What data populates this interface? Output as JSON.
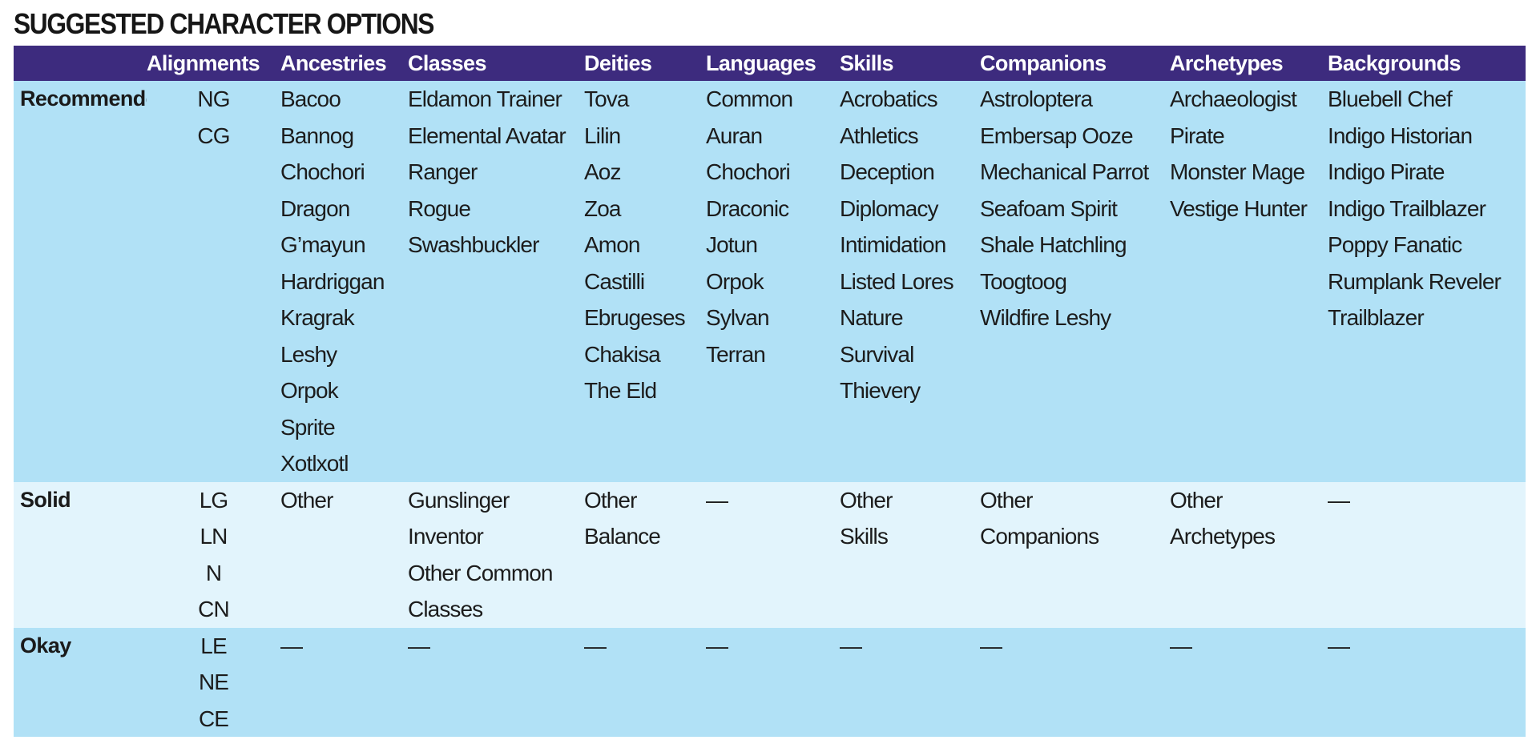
{
  "title": "SUGGESTED CHARACTER OPTIONS",
  "columns": [
    {
      "key": "rowlabel",
      "label": ""
    },
    {
      "key": "alignments",
      "label": "Alignments"
    },
    {
      "key": "ancestries",
      "label": "Ancestries"
    },
    {
      "key": "classes",
      "label": "Classes"
    },
    {
      "key": "deities",
      "label": "Deities"
    },
    {
      "key": "languages",
      "label": "Languages"
    },
    {
      "key": "skills",
      "label": "Skills"
    },
    {
      "key": "companions",
      "label": "Companions"
    },
    {
      "key": "archetypes",
      "label": "Archetypes"
    },
    {
      "key": "backgrounds",
      "label": "Backgrounds"
    }
  ],
  "rows": [
    {
      "label": "Recommended",
      "alignments": [
        "NG",
        "CG"
      ],
      "ancestries": [
        "Bacoo",
        "Bannog",
        "Chochori",
        "Dragon",
        "G’mayun",
        "Hardriggan",
        "Kragrak",
        "Leshy",
        "Orpok",
        "Sprite",
        "Xotlxotl"
      ],
      "classes": [
        "Eldamon Trainer",
        "Elemental Avatar",
        "Ranger",
        "Rogue",
        "Swashbuckler"
      ],
      "deities": [
        "Tova",
        "Lilin",
        "Aoz",
        "Zoa",
        "Amon",
        "Castilli",
        "Ebrugeses",
        "Chakisa",
        "The Eld"
      ],
      "languages": [
        "Common",
        "Auran",
        "Chochori",
        "Draconic",
        "Jotun",
        "Orpok",
        "Sylvan",
        "Terran"
      ],
      "skills": [
        "Acrobatics",
        "Athletics",
        "Deception",
        "Diplomacy",
        "Intimidation",
        "Listed Lores",
        "Nature",
        "Survival",
        "Thievery"
      ],
      "companions": [
        "Astroloptera",
        "Embersap Ooze",
        "Mechanical Parrot",
        "Seafoam Spirit",
        "Shale Hatchling",
        "Toogtoog",
        "Wildfire Leshy"
      ],
      "archetypes": [
        "Archaeologist",
        "Pirate",
        "Monster Mage",
        "Vestige Hunter"
      ],
      "backgrounds": [
        "Bluebell Chef",
        "Indigo Historian",
        "Indigo Pirate",
        "Indigo Trailblazer",
        "Poppy Fanatic",
        "Rumplank Reveler",
        "Trailblazer"
      ]
    },
    {
      "label": "Solid",
      "alignments": [
        "LG",
        "LN",
        "N",
        "CN"
      ],
      "ancestries": [
        "Other"
      ],
      "classes": [
        "Gunslinger",
        "Inventor",
        "Other Common",
        "Classes"
      ],
      "deities": [
        "Other",
        "Balance"
      ],
      "languages": [
        "—"
      ],
      "skills": [
        "Other",
        "Skills"
      ],
      "companions": [
        "Other",
        "Companions"
      ],
      "archetypes": [
        "Other",
        "Archetypes"
      ],
      "backgrounds": [
        "—"
      ]
    },
    {
      "label": "Okay",
      "alignments": [
        "LE",
        "NE",
        "CE"
      ],
      "ancestries": [
        "—"
      ],
      "classes": [
        "—"
      ],
      "deities": [
        "—"
      ],
      "languages": [
        "—"
      ],
      "skills": [
        "—"
      ],
      "companions": [
        "—"
      ],
      "archetypes": [
        "—"
      ],
      "backgrounds": [
        "—"
      ]
    }
  ],
  "colors": {
    "header_bg": "#3d2b7e",
    "row_primary": "#b1e1f6",
    "row_secondary": "#e2f4fc",
    "title": "#161616"
  }
}
